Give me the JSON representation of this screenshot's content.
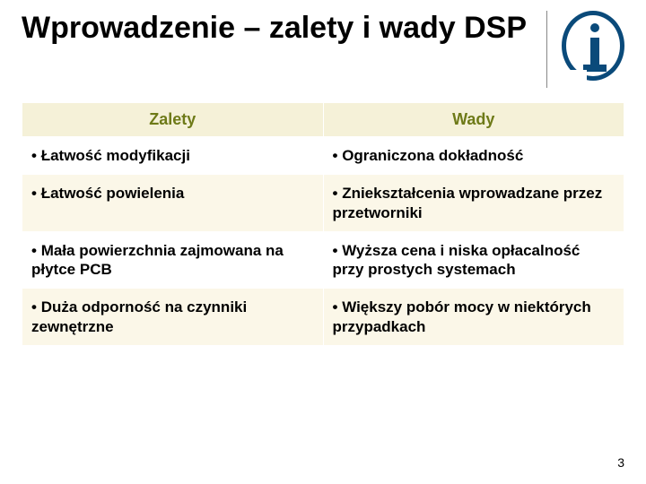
{
  "slide": {
    "title": "Wprowadzenie – zalety i wady DSP",
    "page_number": "3"
  },
  "table": {
    "type": "table",
    "columns": [
      "Zalety",
      "Wady"
    ],
    "rows": [
      [
        "Łatwość modyfikacji",
        "Ograniczona dokładność"
      ],
      [
        "Łatwość powielenia",
        "Zniekształcenia wprowadzane przez przetworniki"
      ],
      [
        "Mała powierzchnia zajmowana na płytce PCB",
        "Wyższa cena i niska opłacalność przy prostych systemach"
      ],
      [
        "Duża odporność na czynniki zewnętrzne",
        "Większy pobór mocy w niektórych przypadkach"
      ]
    ],
    "header_bg": "#f5f1d8",
    "header_color": "#6e7a18",
    "row_even_bg": "#fbf7e8",
    "row_odd_bg": "#ffffff",
    "cell_font_size_pt": 13,
    "header_font_size_pt": 13,
    "border_color": "#ffffff"
  },
  "logo": {
    "name": "institute-i-logo",
    "primary_color": "#0a4a7a"
  }
}
